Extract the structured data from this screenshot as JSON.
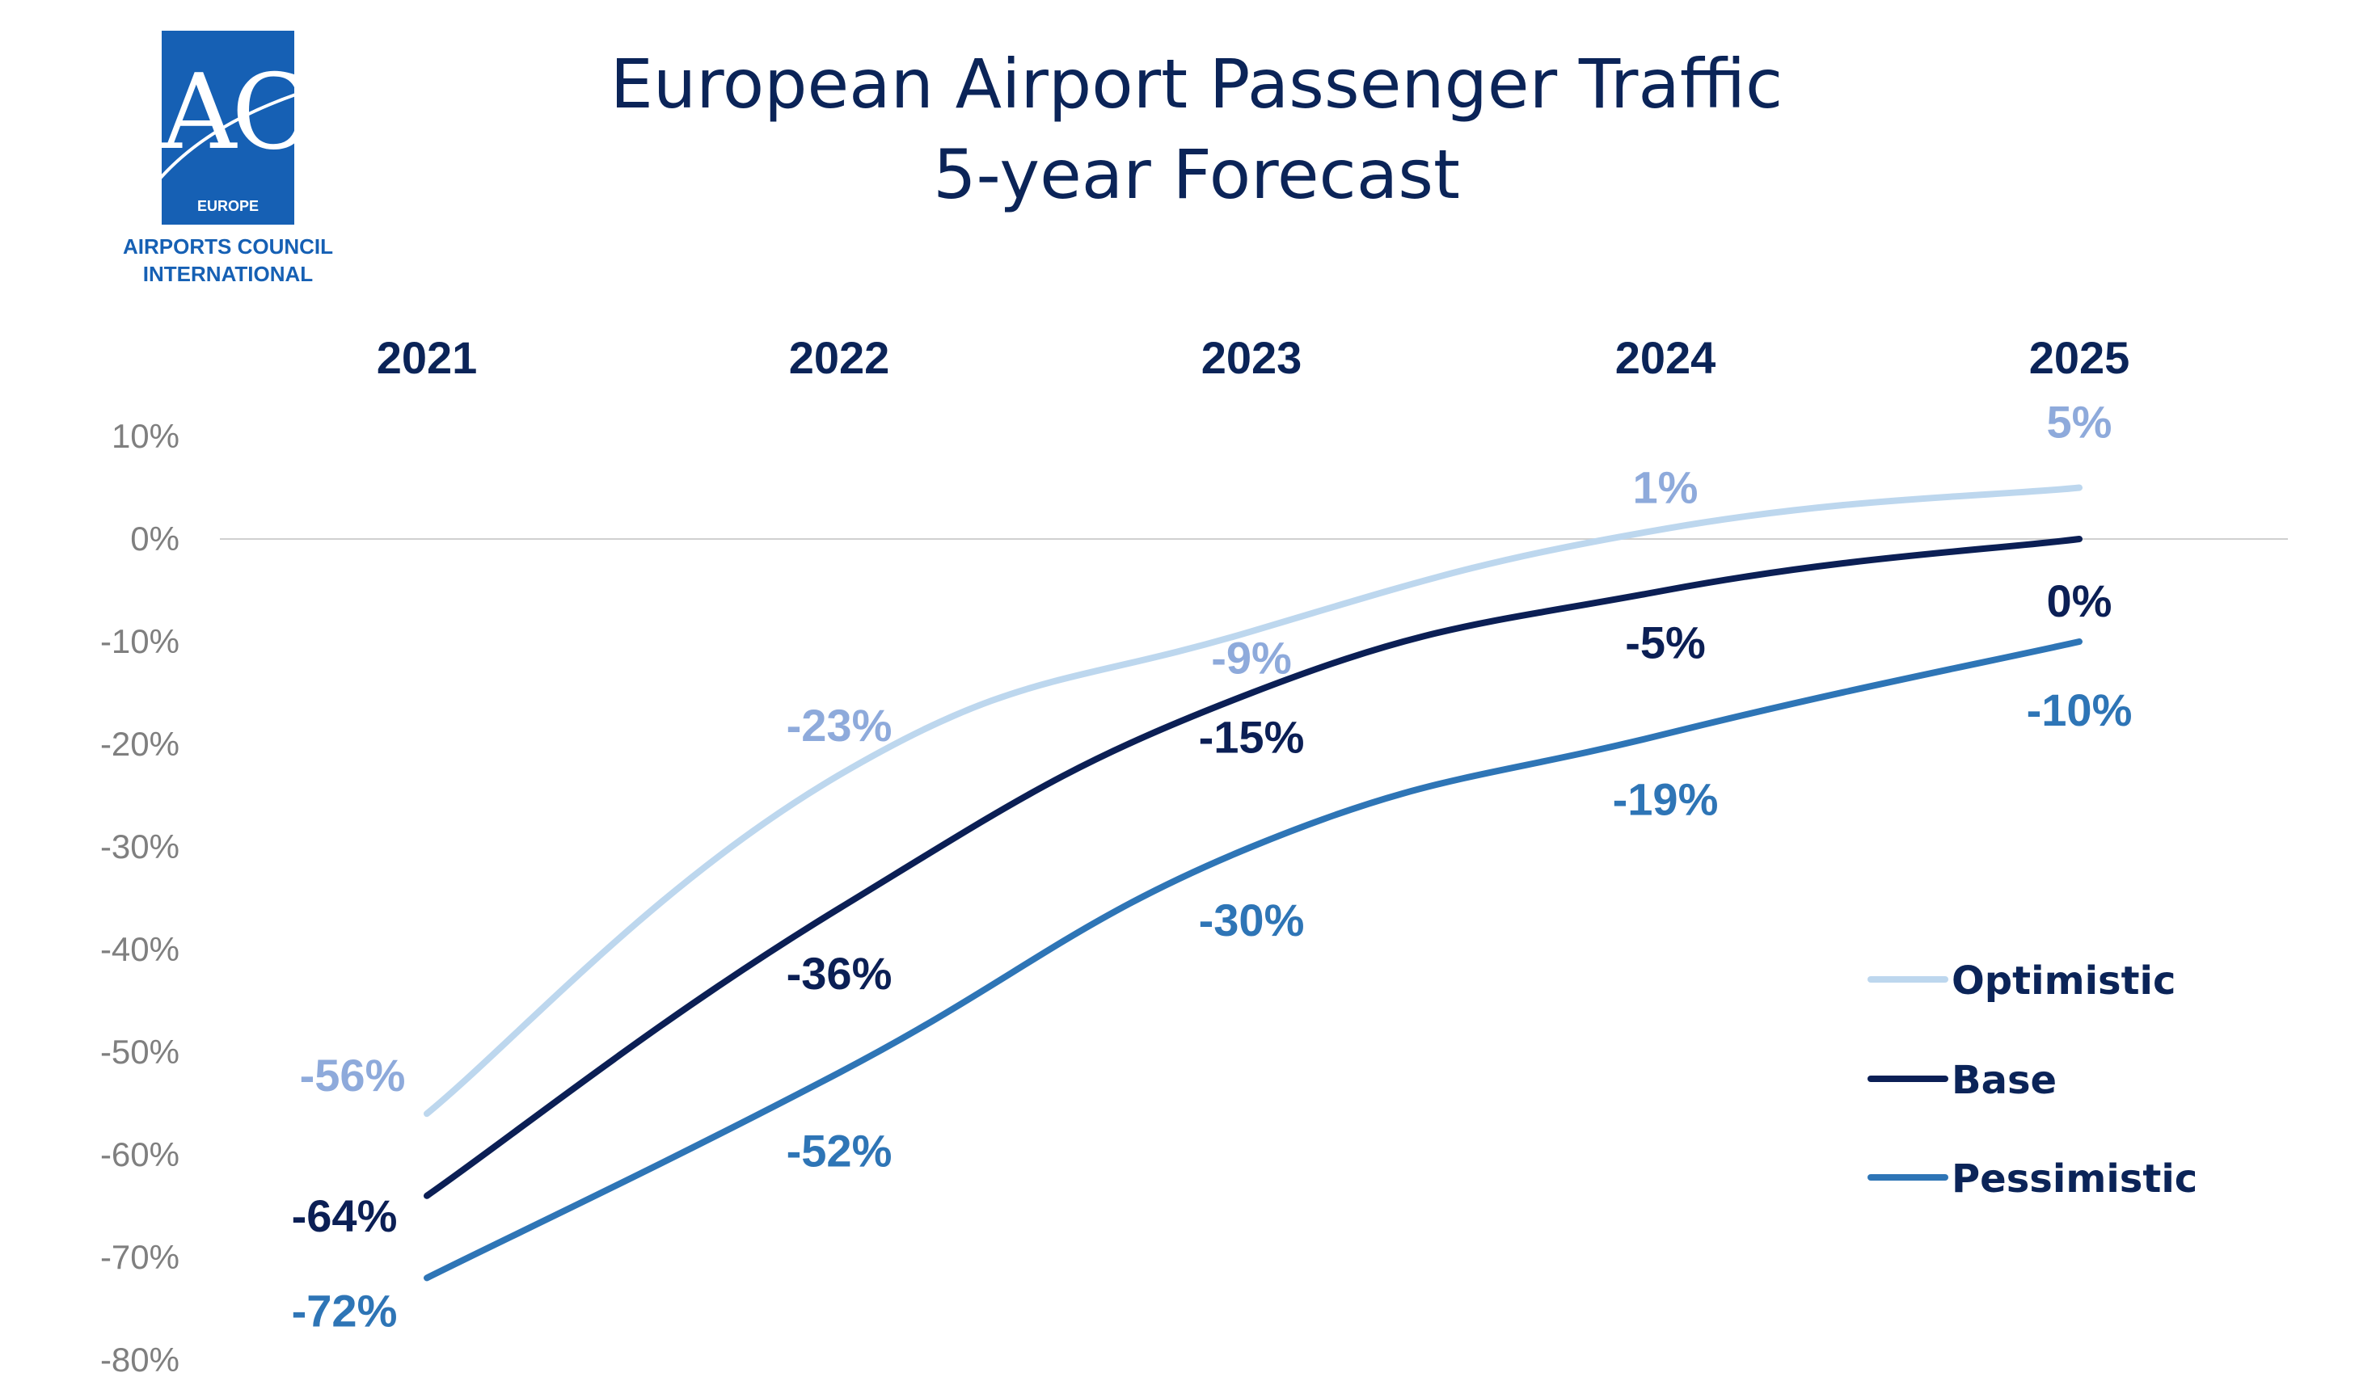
{
  "logo": {
    "mark": "ACI",
    "region": "EUROPE",
    "caption_line1": "AIRPORTS COUNCIL",
    "caption_line2": "INTERNATIONAL"
  },
  "title_line1": "European Airport Passenger Traffic",
  "title_line2": "5-year Forecast",
  "chart_data": {
    "type": "line",
    "title": "European Airport Passenger Traffic 5-year Forecast",
    "xlabel": "",
    "ylabel": "",
    "categories": [
      "2021",
      "2022",
      "2023",
      "2024",
      "2025"
    ],
    "x_axis_position": "top",
    "y_ticks": [
      "10%",
      "0%",
      "-10%",
      "-20%",
      "-30%",
      "-40%",
      "-50%",
      "-60%",
      "-70%",
      "-80%"
    ],
    "ylim": [
      -80,
      10
    ],
    "grid": false,
    "zero_line": true,
    "legend_position": "bottom-right",
    "series": [
      {
        "name": "Optimistic",
        "values": [
          -56,
          -23,
          -9,
          1,
          5
        ],
        "labels": [
          "-56%",
          "-23%",
          "-9%",
          "1%",
          "5%"
        ],
        "color": "#bdd7ee",
        "label_color": "#8eaadb"
      },
      {
        "name": "Base",
        "values": [
          -64,
          -36,
          -15,
          -5,
          0
        ],
        "labels": [
          "-64%",
          "-36%",
          "-15%",
          "-5%",
          "0%"
        ],
        "color": "#0b1f55",
        "label_color": "#0b1f55"
      },
      {
        "name": "Pessimistic",
        "values": [
          -72,
          -52,
          -30,
          -19,
          -10
        ],
        "labels": [
          "-72%",
          "-52%",
          "-30%",
          "-19%",
          "-10%"
        ],
        "color": "#2e75b6",
        "label_color": "#2e75b6"
      }
    ]
  }
}
